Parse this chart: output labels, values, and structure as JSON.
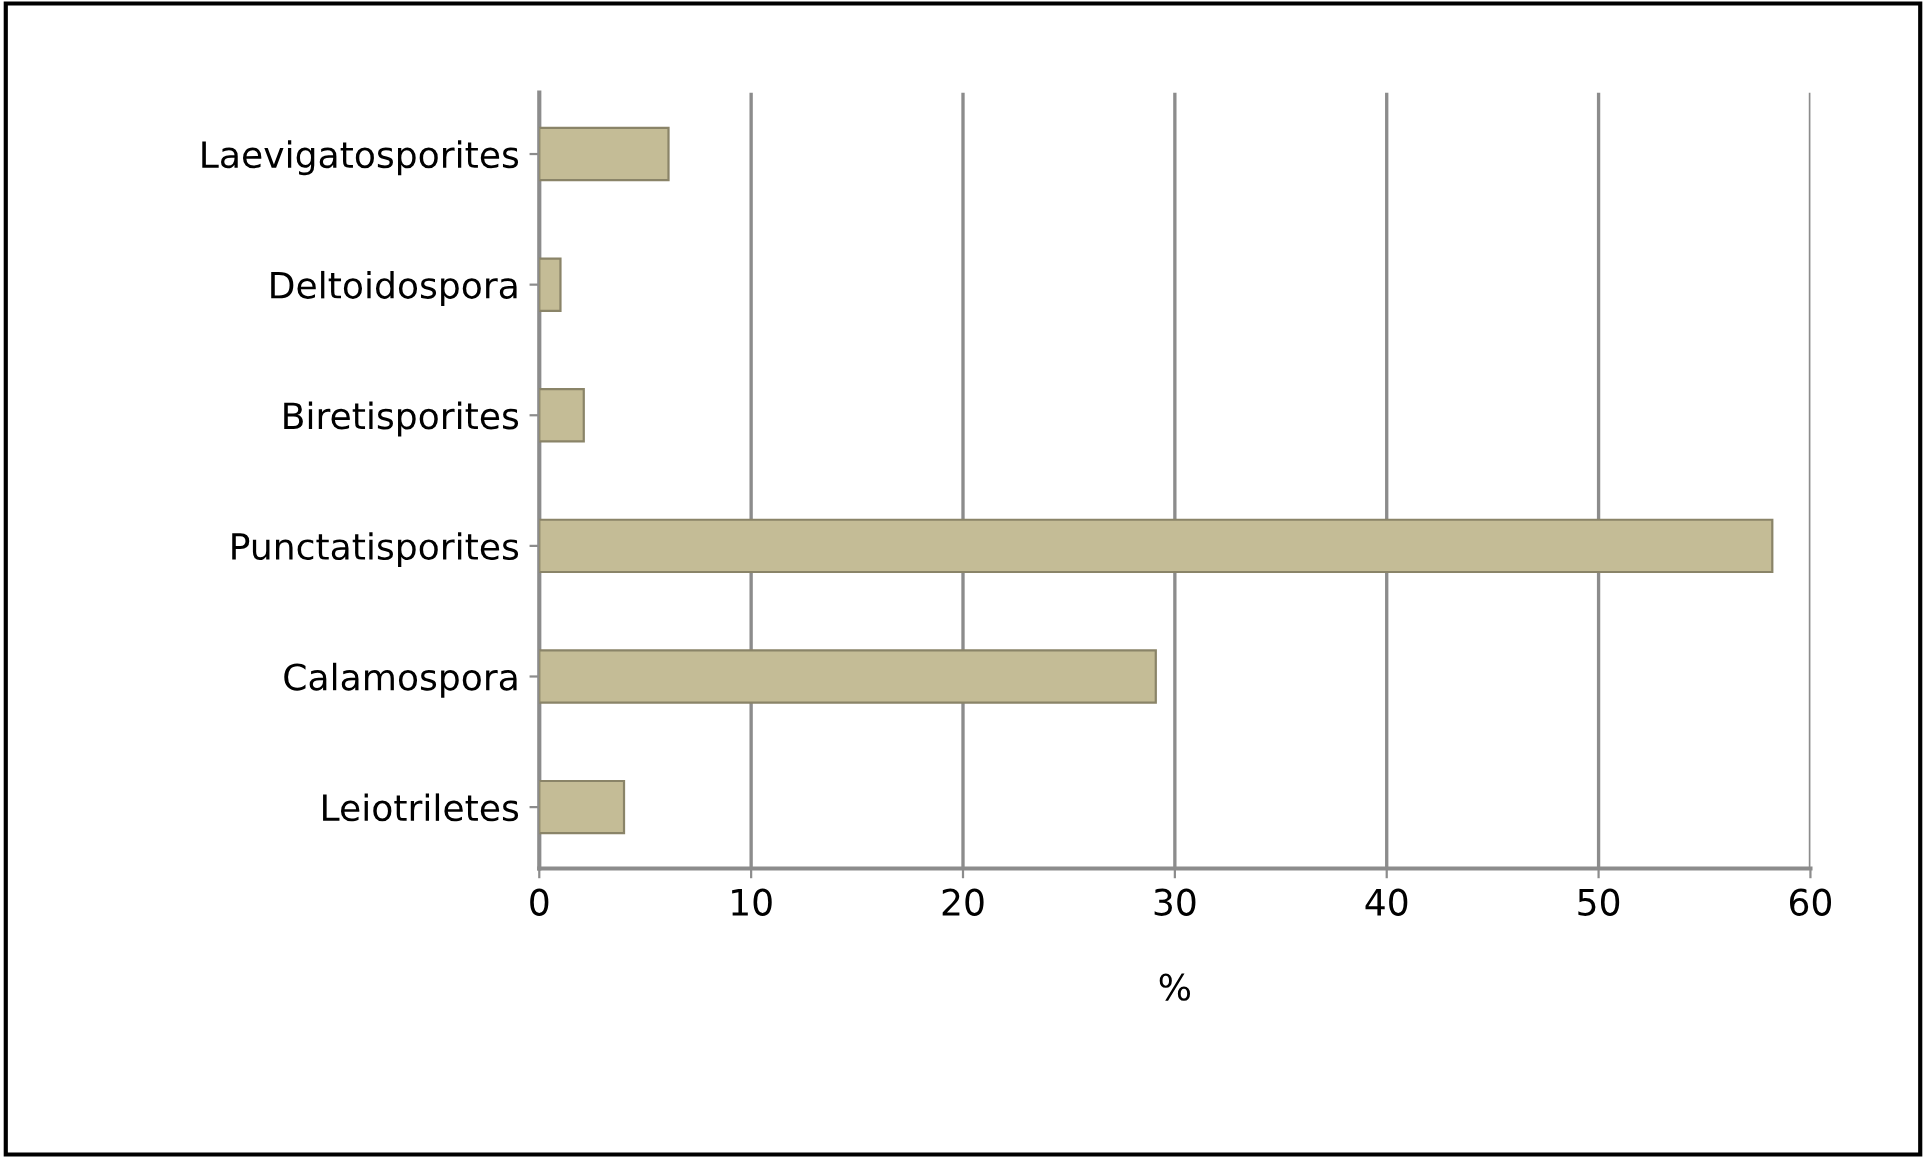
{
  "chart_data": {
    "type": "bar",
    "orientation": "horizontal",
    "xlabel": "%",
    "categories": [
      "Laevigatosporites",
      "Deltoidospora",
      "Biretisporites",
      "Punctatisporites",
      "Calamospora",
      "Leiotriletes"
    ],
    "values": [
      6.1,
      1.0,
      2.1,
      58.2,
      29.1,
      4.0
    ],
    "color": "#c4bc96",
    "xlim": [
      0,
      60
    ],
    "xticks": [
      0,
      10,
      20,
      30,
      40,
      50,
      60
    ],
    "grid": "x"
  }
}
